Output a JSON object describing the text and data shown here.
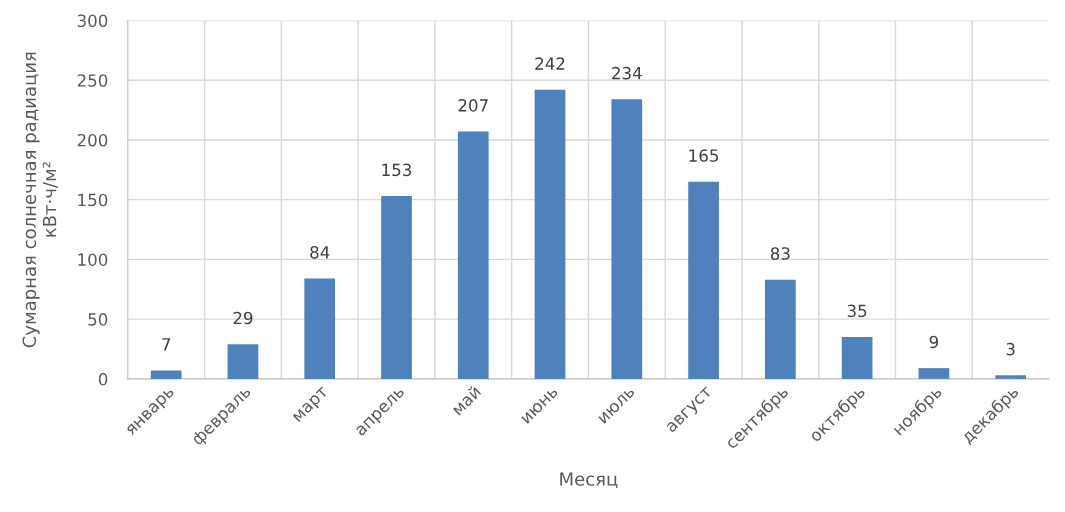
{
  "chart_data": {
    "type": "bar",
    "xlabel": "Месяц",
    "ylabel": "Сумарная солнечная радиация\nкВт·ч/м²",
    "categories": [
      "январь",
      "февраль",
      "март",
      "апрель",
      "май",
      "июнь",
      "июль",
      "август",
      "сентябрь",
      "октябрь",
      "ноябрь",
      "декабрь"
    ],
    "values": [
      7,
      29,
      84,
      153,
      207,
      242,
      234,
      165,
      83,
      35,
      9,
      3
    ],
    "color": "#4f81bd",
    "ylim": [
      0,
      300
    ],
    "yticks": [
      0,
      50,
      100,
      150,
      200,
      250,
      300
    ],
    "grid": true,
    "data_labels": true
  }
}
